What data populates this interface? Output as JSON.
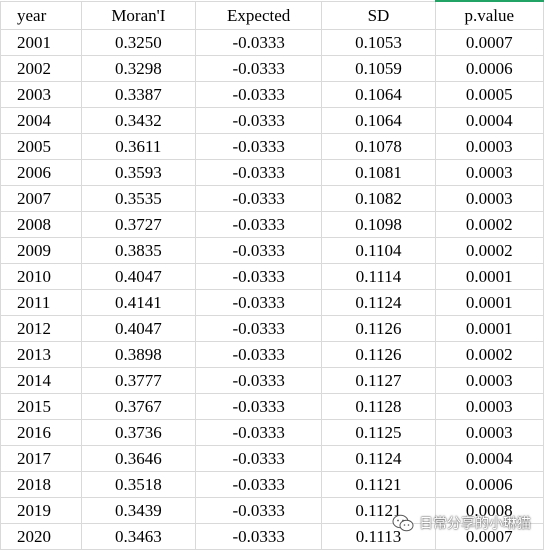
{
  "table": {
    "headers": [
      "year",
      "Moran'I",
      "Expected",
      "SD",
      "p.value"
    ],
    "rows": [
      [
        "2001",
        "0.3250",
        "-0.0333",
        "0.1053",
        "0.0007"
      ],
      [
        "2002",
        "0.3298",
        "-0.0333",
        "0.1059",
        "0.0006"
      ],
      [
        "2003",
        "0.3387",
        "-0.0333",
        "0.1064",
        "0.0005"
      ],
      [
        "2004",
        "0.3432",
        "-0.0333",
        "0.1064",
        "0.0004"
      ],
      [
        "2005",
        "0.3611",
        "-0.0333",
        "0.1078",
        "0.0003"
      ],
      [
        "2006",
        "0.3593",
        "-0.0333",
        "0.1081",
        "0.0003"
      ],
      [
        "2007",
        "0.3535",
        "-0.0333",
        "0.1082",
        "0.0003"
      ],
      [
        "2008",
        "0.3727",
        "-0.0333",
        "0.1098",
        "0.0002"
      ],
      [
        "2009",
        "0.3835",
        "-0.0333",
        "0.1104",
        "0.0002"
      ],
      [
        "2010",
        "0.4047",
        "-0.0333",
        "0.1114",
        "0.0001"
      ],
      [
        "2011",
        "0.4141",
        "-0.0333",
        "0.1124",
        "0.0001"
      ],
      [
        "2012",
        "0.4047",
        "-0.0333",
        "0.1126",
        "0.0001"
      ],
      [
        "2013",
        "0.3898",
        "-0.0333",
        "0.1126",
        "0.0002"
      ],
      [
        "2014",
        "0.3777",
        "-0.0333",
        "0.1127",
        "0.0003"
      ],
      [
        "2015",
        "0.3767",
        "-0.0333",
        "0.1128",
        "0.0003"
      ],
      [
        "2016",
        "0.3736",
        "-0.0333",
        "0.1125",
        "0.0003"
      ],
      [
        "2017",
        "0.3646",
        "-0.0333",
        "0.1124",
        "0.0004"
      ],
      [
        "2018",
        "0.3518",
        "-0.0333",
        "0.1121",
        "0.0006"
      ],
      [
        "2019",
        "0.3439",
        "-0.0333",
        "0.1121",
        "0.0008"
      ],
      [
        "2020",
        "0.3463",
        "-0.0333",
        "0.1113",
        "0.0007"
      ]
    ]
  },
  "watermark": {
    "text": "日常分享的小琳猫",
    "icon": "wechat-icon"
  },
  "colors": {
    "gridline": "#d9d9d9",
    "selection_accent": "#21a366"
  }
}
